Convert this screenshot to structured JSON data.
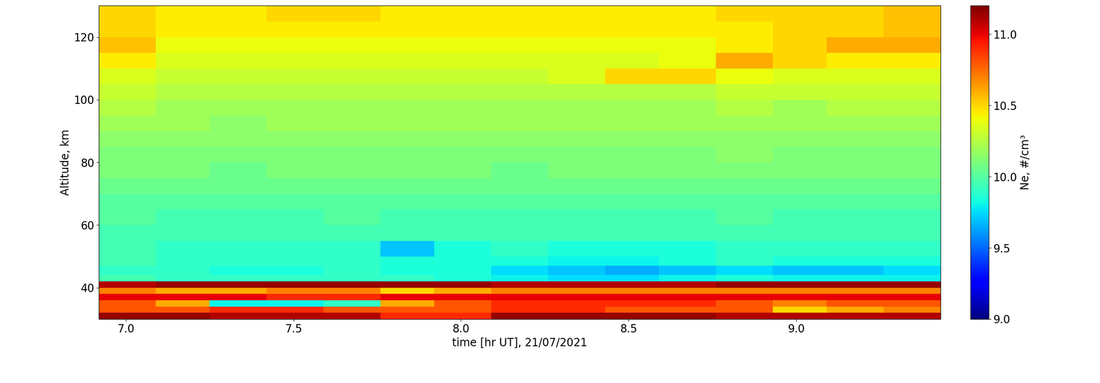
{
  "chart_data": {
    "type": "heatmap",
    "x_label": "time [hr UT], 21/07/2021",
    "y_label": "Altitude, km",
    "colorbar_label": "Ne, #/cm³",
    "x_edges": [
      6.92,
      7.09,
      7.25,
      7.42,
      7.59,
      7.76,
      7.92,
      8.09,
      8.26,
      8.43,
      8.59,
      8.76,
      8.93,
      9.09,
      9.26,
      9.43
    ],
    "y_edges": [
      30,
      32,
      34,
      36,
      38,
      40,
      42,
      44,
      47,
      50,
      55,
      60,
      65,
      70,
      75,
      80,
      85,
      90,
      95,
      100,
      105,
      110,
      115,
      120,
      125,
      130
    ],
    "cells": [
      [
        11.15,
        11.15,
        11.1,
        11.1,
        11.1,
        10.9,
        10.9,
        11.15,
        11.15,
        11.15,
        11.15,
        11.1,
        11.1,
        11.1,
        11.1
      ],
      [
        10.8,
        10.8,
        10.9,
        10.9,
        10.8,
        10.8,
        10.8,
        10.9,
        10.9,
        10.8,
        10.8,
        10.8,
        10.5,
        10.6,
        10.7
      ],
      [
        10.8,
        10.6,
        9.8,
        9.8,
        9.9,
        10.6,
        10.8,
        10.9,
        10.9,
        10.9,
        10.9,
        10.8,
        10.7,
        10.8,
        10.8
      ],
      [
        11.0,
        11.0,
        11.0,
        10.9,
        10.9,
        11.0,
        11.0,
        11.0,
        11.0,
        11.0,
        11.0,
        11.0,
        11.0,
        11.0,
        11.0
      ],
      [
        10.7,
        10.6,
        10.6,
        10.7,
        10.7,
        10.5,
        10.6,
        10.7,
        10.7,
        10.7,
        10.7,
        10.7,
        10.7,
        10.7,
        10.7
      ],
      [
        11.1,
        11.15,
        11.15,
        11.15,
        11.15,
        11.15,
        11.15,
        11.1,
        11.1,
        11.1,
        11.1,
        11.15,
        11.15,
        11.15,
        11.15
      ],
      [
        9.95,
        9.9,
        9.9,
        9.9,
        9.9,
        9.9,
        9.85,
        9.8,
        9.75,
        9.75,
        9.8,
        9.85,
        9.8,
        9.8,
        9.8
      ],
      [
        9.9,
        9.9,
        9.85,
        9.85,
        9.9,
        9.85,
        9.85,
        9.75,
        9.7,
        9.65,
        9.7,
        9.75,
        9.7,
        9.7,
        9.75
      ],
      [
        9.95,
        9.9,
        9.9,
        9.9,
        9.9,
        9.85,
        9.85,
        9.85,
        9.8,
        9.8,
        9.85,
        9.9,
        9.85,
        9.85,
        9.85
      ],
      [
        9.95,
        9.9,
        9.9,
        9.9,
        9.9,
        9.7,
        9.85,
        9.9,
        9.85,
        9.85,
        9.85,
        9.9,
        9.9,
        9.9,
        9.9
      ],
      [
        9.95,
        9.95,
        9.95,
        9.95,
        9.95,
        9.95,
        9.95,
        9.95,
        9.95,
        9.95,
        9.95,
        9.95,
        9.95,
        9.95,
        9.95
      ],
      [
        10.0,
        9.95,
        9.95,
        9.95,
        10.0,
        9.95,
        9.95,
        9.95,
        9.95,
        9.95,
        9.95,
        10.0,
        9.95,
        9.95,
        9.95
      ],
      [
        10.0,
        10.0,
        10.0,
        10.0,
        10.0,
        10.0,
        10.0,
        10.0,
        10.0,
        10.0,
        10.0,
        10.0,
        10.0,
        10.0,
        10.0
      ],
      [
        10.05,
        10.05,
        10.05,
        10.05,
        10.05,
        10.05,
        10.05,
        10.05,
        10.05,
        10.05,
        10.05,
        10.05,
        10.05,
        10.05,
        10.05
      ],
      [
        10.1,
        10.1,
        10.05,
        10.1,
        10.1,
        10.1,
        10.1,
        10.05,
        10.1,
        10.1,
        10.1,
        10.1,
        10.1,
        10.1,
        10.1
      ],
      [
        10.1,
        10.1,
        10.1,
        10.1,
        10.1,
        10.1,
        10.1,
        10.1,
        10.1,
        10.1,
        10.1,
        10.15,
        10.1,
        10.1,
        10.1
      ],
      [
        10.15,
        10.15,
        10.15,
        10.15,
        10.15,
        10.15,
        10.15,
        10.15,
        10.15,
        10.15,
        10.15,
        10.15,
        10.15,
        10.15,
        10.15
      ],
      [
        10.2,
        10.2,
        10.15,
        10.2,
        10.2,
        10.2,
        10.2,
        10.2,
        10.2,
        10.2,
        10.2,
        10.2,
        10.2,
        10.2,
        10.2
      ],
      [
        10.25,
        10.2,
        10.2,
        10.2,
        10.2,
        10.2,
        10.2,
        10.2,
        10.2,
        10.2,
        10.2,
        10.25,
        10.2,
        10.25,
        10.25
      ],
      [
        10.3,
        10.25,
        10.25,
        10.25,
        10.25,
        10.25,
        10.25,
        10.25,
        10.25,
        10.25,
        10.25,
        10.3,
        10.3,
        10.3,
        10.3
      ],
      [
        10.35,
        10.3,
        10.3,
        10.3,
        10.3,
        10.3,
        10.3,
        10.3,
        10.35,
        10.5,
        10.5,
        10.4,
        10.35,
        10.35,
        10.35
      ],
      [
        10.45,
        10.35,
        10.35,
        10.35,
        10.35,
        10.35,
        10.35,
        10.35,
        10.35,
        10.35,
        10.4,
        10.6,
        10.5,
        10.45,
        10.45
      ],
      [
        10.55,
        10.4,
        10.4,
        10.4,
        10.4,
        10.4,
        10.4,
        10.4,
        10.4,
        10.4,
        10.4,
        10.45,
        10.5,
        10.6,
        10.6
      ],
      [
        10.5,
        10.45,
        10.45,
        10.45,
        10.45,
        10.45,
        10.45,
        10.45,
        10.45,
        10.45,
        10.45,
        10.45,
        10.5,
        10.5,
        10.55
      ],
      [
        10.5,
        10.45,
        10.45,
        10.5,
        10.5,
        10.45,
        10.45,
        10.45,
        10.45,
        10.45,
        10.45,
        10.5,
        10.5,
        10.5,
        10.55
      ]
    ],
    "xlim": [
      6.92,
      9.43
    ],
    "ylim": [
      30,
      130
    ],
    "xticks": [
      {
        "value": 7.0,
        "label": "7.0"
      },
      {
        "value": 7.5,
        "label": "7.5"
      },
      {
        "value": 8.0,
        "label": "8.0"
      },
      {
        "value": 8.5,
        "label": "8.5"
      },
      {
        "value": 9.0,
        "label": "9.0"
      }
    ],
    "yticks": [
      40,
      60,
      80,
      100,
      120
    ],
    "clim": [
      9.0,
      11.2
    ],
    "cticks": [
      {
        "value": 9.0,
        "label": "9.0"
      },
      {
        "value": 9.5,
        "label": "9.5"
      },
      {
        "value": 10.0,
        "label": "10.0"
      },
      {
        "value": 10.5,
        "label": "10.5"
      },
      {
        "value": 11.0,
        "label": "11.0"
      }
    ],
    "grid": false
  }
}
